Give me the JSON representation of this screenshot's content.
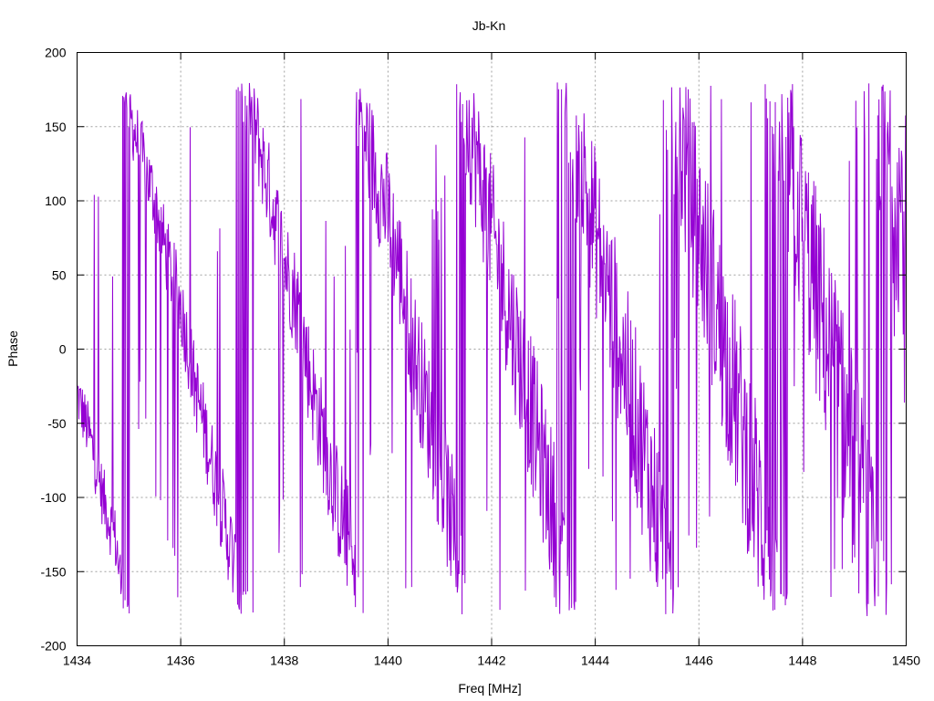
{
  "chart_data": {
    "type": "line",
    "title": "Jb-Kn",
    "xlabel": "Freq [MHz]",
    "ylabel": "Phase",
    "xlim": [
      1434,
      1450
    ],
    "ylim": [
      -200,
      200
    ],
    "xticks": [
      1434,
      1436,
      1438,
      1440,
      1442,
      1444,
      1446,
      1448,
      1450
    ],
    "yticks": [
      -200,
      -150,
      -100,
      -50,
      0,
      50,
      100,
      150,
      200
    ],
    "xtick_labels": [
      "1434",
      "1436",
      "1438",
      "1440",
      "1442",
      "1444",
      "1446",
      "1448",
      "1450"
    ],
    "ytick_labels": [
      "-200",
      "-150",
      "-100",
      "-50",
      "0",
      "50",
      "100",
      "150",
      "200"
    ],
    "grid": true,
    "legend": "none",
    "line_color": "#9400d3",
    "series": [
      {
        "x": [
          1434.0,
          1434.25,
          1434.5,
          1434.75,
          1435.0,
          1435.25,
          1435.5,
          1435.75,
          1436.0,
          1436.25,
          1436.5,
          1436.75,
          1437.0,
          1437.25,
          1437.5,
          1437.75,
          1438.0,
          1438.25,
          1438.5,
          1438.75,
          1439.0,
          1439.25,
          1439.5,
          1439.75,
          1440.0,
          1440.25,
          1440.5,
          1440.75,
          1441.0,
          1441.25,
          1441.5,
          1441.75,
          1442.0,
          1442.25,
          1442.5,
          1442.75,
          1443.0,
          1443.25,
          1443.5,
          1443.75,
          1444.0,
          1444.25,
          1444.5,
          1444.75,
          1445.0,
          1445.25,
          1445.5,
          1445.75,
          1446.0,
          1446.25,
          1446.5,
          1446.75,
          1447.0,
          1447.25,
          1447.5,
          1447.75,
          1448.0,
          1448.25,
          1448.5,
          1448.75,
          1449.0,
          1449.25,
          1449.5,
          1449.75,
          1450.0
        ],
        "values": [
          -30,
          -60,
          -100,
          -130,
          160,
          130,
          100,
          60,
          30,
          -20,
          -60,
          -100,
          -140,
          170,
          140,
          100,
          60,
          30,
          -20,
          -60,
          -100,
          -130,
          150,
          120,
          90,
          50,
          0,
          -40,
          -80,
          -120,
          160,
          120,
          80,
          40,
          0,
          -40,
          -80,
          -120,
          160,
          120,
          80,
          40,
          0,
          -40,
          -80,
          -120,
          160,
          120,
          80,
          40,
          0,
          -40,
          -80,
          -120,
          160,
          120,
          80,
          40,
          0,
          -40,
          -80,
          -120,
          160,
          120,
          80
        ]
      }
    ]
  }
}
